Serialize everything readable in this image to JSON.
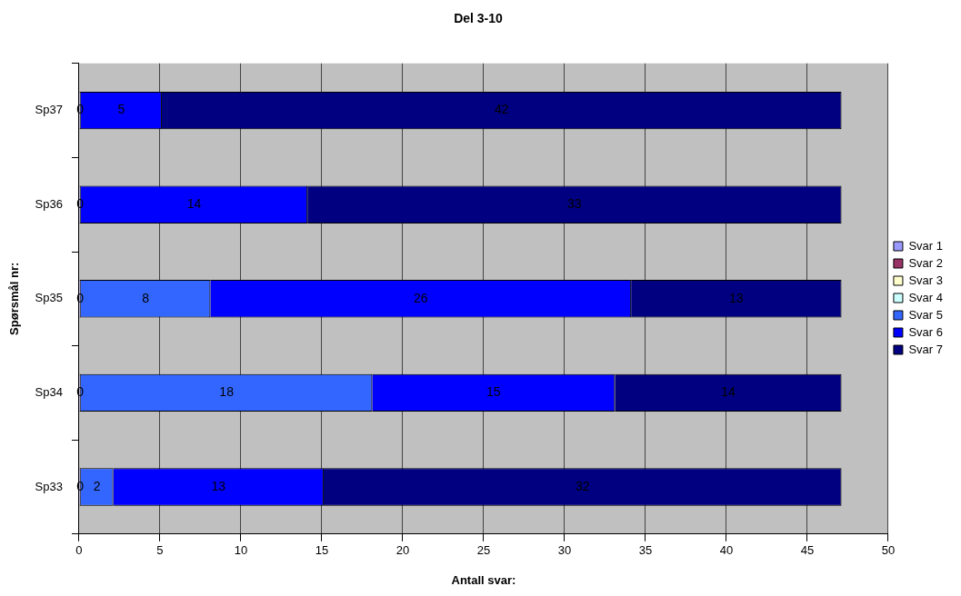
{
  "chart_data": {
    "type": "bar",
    "orientation": "horizontal",
    "stacked": true,
    "title": "Del 3-10",
    "xlabel": "Antall svar:",
    "ylabel": "Spørsmål nr:",
    "categories": [
      "Sp37",
      "Sp36",
      "Sp35",
      "Sp34",
      "Sp33"
    ],
    "series": [
      {
        "name": "Svar 1",
        "color": "#9999ff",
        "values": [
          0,
          0,
          0,
          0,
          0
        ]
      },
      {
        "name": "Svar 2",
        "color": "#993366",
        "values": [
          null,
          null,
          null,
          null,
          null
        ]
      },
      {
        "name": "Svar 3",
        "color": "#ffffcc",
        "values": [
          null,
          null,
          null,
          null,
          null
        ]
      },
      {
        "name": "Svar 4",
        "color": "#ccffff",
        "values": [
          null,
          null,
          null,
          null,
          null
        ]
      },
      {
        "name": "Svar 5",
        "color": "#3366ff",
        "values": [
          null,
          null,
          8,
          18,
          2
        ]
      },
      {
        "name": "Svar 6",
        "color": "#0000ff",
        "values": [
          5,
          14,
          26,
          15,
          13
        ]
      },
      {
        "name": "Svar 7",
        "color": "#000080",
        "values": [
          42,
          33,
          13,
          14,
          32
        ]
      }
    ],
    "xlim": [
      0,
      50
    ],
    "xticks": [
      0,
      5,
      10,
      15,
      20,
      25,
      30,
      35,
      40,
      45,
      50
    ],
    "grid": "x",
    "legend": "right",
    "data_labels": true
  }
}
